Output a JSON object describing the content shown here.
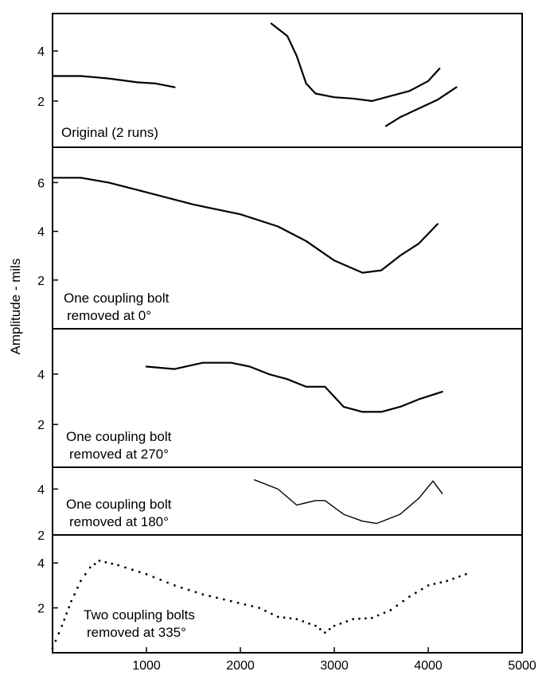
{
  "chart_data": {
    "type": "line",
    "ylabel": "Amplitude - mils",
    "xlabel": "",
    "xlim": [
      0,
      5000
    ],
    "x_ticks": [
      1000,
      2000,
      3000,
      4000,
      5000
    ],
    "grid": false,
    "panels": [
      {
        "label": [
          "Original (2 runs)"
        ],
        "ylim": [
          0.15,
          5.5
        ],
        "y_ticks": [
          2,
          4
        ],
        "series": [
          {
            "style": "solid",
            "x": [
              0,
              300,
              600,
              900,
              1100,
              1300
            ],
            "y": [
              3,
              3,
              2.9,
              2.75,
              2.7,
              2.55
            ]
          },
          {
            "style": "solid",
            "x": [
              2330,
              2500,
              2600,
              2700,
              2800,
              3000,
              3200,
              3400,
              3600,
              3800,
              4000,
              4120
            ],
            "y": [
              5.1,
              4.6,
              3.8,
              2.7,
              2.3,
              2.15,
              2.1,
              2.0,
              2.2,
              2.4,
              2.8,
              3.3
            ]
          },
          {
            "style": "solid",
            "x": [
              3550,
              3700,
              3900,
              4100,
              4300
            ],
            "y": [
              1.0,
              1.35,
              1.7,
              2.05,
              2.55
            ]
          }
        ]
      },
      {
        "label": [
          "One coupling bolt",
          "removed at 0°"
        ],
        "ylim": [
          0,
          7.45
        ],
        "y_ticks": [
          2,
          4,
          6
        ],
        "series": [
          {
            "style": "solid",
            "x": [
              0,
              300,
              600,
              1000,
              1500,
              2000,
              2400,
              2700,
              3000,
              3300,
              3500,
              3700,
              3900,
              4100
            ],
            "y": [
              6.2,
              6.2,
              6.0,
              5.6,
              5.1,
              4.7,
              4.2,
              3.6,
              2.8,
              2.3,
              2.4,
              3.0,
              3.5,
              4.3
            ]
          }
        ]
      },
      {
        "label": [
          "One coupling bolt",
          "removed at 270°"
        ],
        "ylim": [
          0.3,
          5.8
        ],
        "y_ticks": [
          2,
          4
        ],
        "series": [
          {
            "style": "solid",
            "x": [
              1000,
              1300,
              1600,
              1900,
              2100,
              2300,
              2500,
              2700,
              2900,
              3100,
              3300,
              3500,
              3700,
              3900,
              4150
            ],
            "y": [
              4.3,
              4.2,
              4.45,
              4.45,
              4.3,
              4.0,
              3.8,
              3.5,
              3.5,
              2.7,
              2.5,
              2.5,
              2.7,
              3.0,
              3.3
            ]
          }
        ]
      },
      {
        "label": [
          "One coupling bolt",
          "removed at 180°"
        ],
        "ylim": [
          2,
          4.95
        ],
        "y_ticks": [
          2,
          4
        ],
        "series": [
          {
            "style": "solid",
            "x": [
              2150,
              2400,
              2600,
              2800,
              2900,
              3100,
              3300,
              3450,
              3700,
              3900,
              4050,
              4150
            ],
            "y": [
              4.4,
              4.0,
              3.3,
              3.5,
              3.5,
              2.9,
              2.6,
              2.5,
              2.9,
              3.6,
              4.35,
              3.8
            ]
          }
        ]
      },
      {
        "label": [
          "Two coupling bolts",
          "removed at 335°"
        ],
        "ylim": [
          0,
          5.25
        ],
        "y_ticks": [
          2,
          4
        ],
        "series": [
          {
            "style": "dotted",
            "x": [
              0,
              100,
              200,
              300,
              400,
              500,
              700,
              1000,
              1300,
              1600,
              1900,
              2200,
              2400,
              2600,
              2800,
              2900,
              3000,
              3200,
              3400,
              3600,
              3800,
              4000,
              4200,
              4400
            ],
            "y": [
              0.2,
              1.2,
              2.3,
              3.2,
              3.8,
              4.1,
              3.9,
              3.5,
              3.0,
              2.6,
              2.3,
              2.0,
              1.6,
              1.5,
              1.2,
              0.9,
              1.2,
              1.5,
              1.55,
              1.9,
              2.5,
              3.0,
              3.2,
              3.5
            ]
          }
        ]
      }
    ]
  }
}
